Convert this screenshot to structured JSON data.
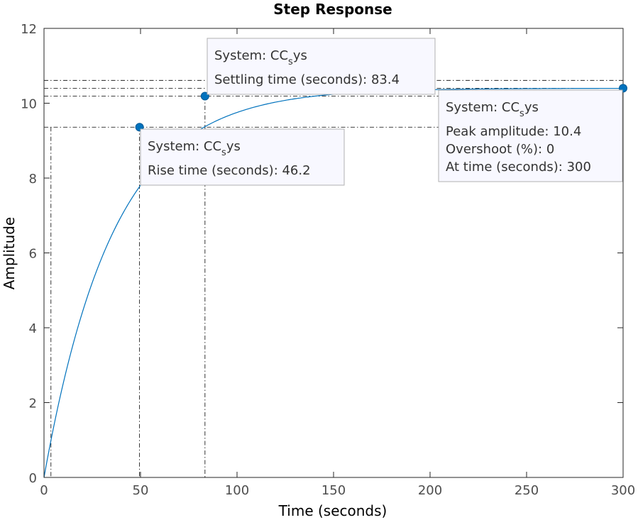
{
  "chart_data": {
    "type": "line",
    "title": "Step Response",
    "xlabel": "Time (seconds)",
    "ylabel": "Amplitude",
    "xlim": [
      0,
      300
    ],
    "ylim": [
      0,
      12
    ],
    "xticks": [
      0,
      50,
      100,
      150,
      200,
      250,
      300
    ],
    "yticks": [
      0,
      2,
      4,
      6,
      8,
      10,
      12
    ],
    "grid": false,
    "colors": {
      "line": "#0072BD",
      "marker": "#0072BD",
      "box_fill": "#f8f8ff",
      "box_border": "#b0b0b0"
    },
    "series": [
      {
        "final_value": 10.4,
        "time_constant": 36,
        "x": [
          0,
          2,
          5,
          10,
          15,
          20,
          25,
          30,
          35,
          40,
          46.2,
          50,
          55,
          60,
          70,
          83.4,
          90,
          100,
          120,
          140,
          160,
          180,
          200,
          225,
          250,
          275,
          300
        ],
        "y": [
          0,
          0.57,
          1.35,
          2.52,
          3.54,
          4.43,
          5.21,
          5.89,
          6.48,
          6.99,
          7.54,
          9.37,
          9.55,
          9.73,
          9.98,
          10.19,
          10.24,
          10.3,
          10.36,
          10.38,
          10.39,
          10.4,
          10.4,
          10.4,
          10.4,
          10.4,
          10.4
        ]
      }
    ],
    "reference_lines": {
      "y": [
        9.36,
        10.19,
        10.4,
        10.61
      ],
      "x": [
        3.6,
        49.5,
        83.4,
        300
      ]
    },
    "datatips": [
      {
        "id": "rise",
        "point": [
          49.5,
          9.36
        ],
        "system_prefix": "System: CC",
        "system_sub": "s",
        "system_suffix": "ys",
        "lines": [
          "Rise time (seconds): 46.2"
        ]
      },
      {
        "id": "settling",
        "point": [
          83.4,
          10.19
        ],
        "system_prefix": "System: CC",
        "system_sub": "s",
        "system_suffix": "ys",
        "lines": [
          "Settling time (seconds): 83.4"
        ]
      },
      {
        "id": "peak",
        "point": [
          300,
          10.4
        ],
        "system_prefix": "System: CC",
        "system_sub": "s",
        "system_suffix": "ys",
        "lines": [
          "Peak amplitude: 10.4",
          "Overshoot (%): 0",
          "At time (seconds): 300"
        ]
      }
    ]
  }
}
